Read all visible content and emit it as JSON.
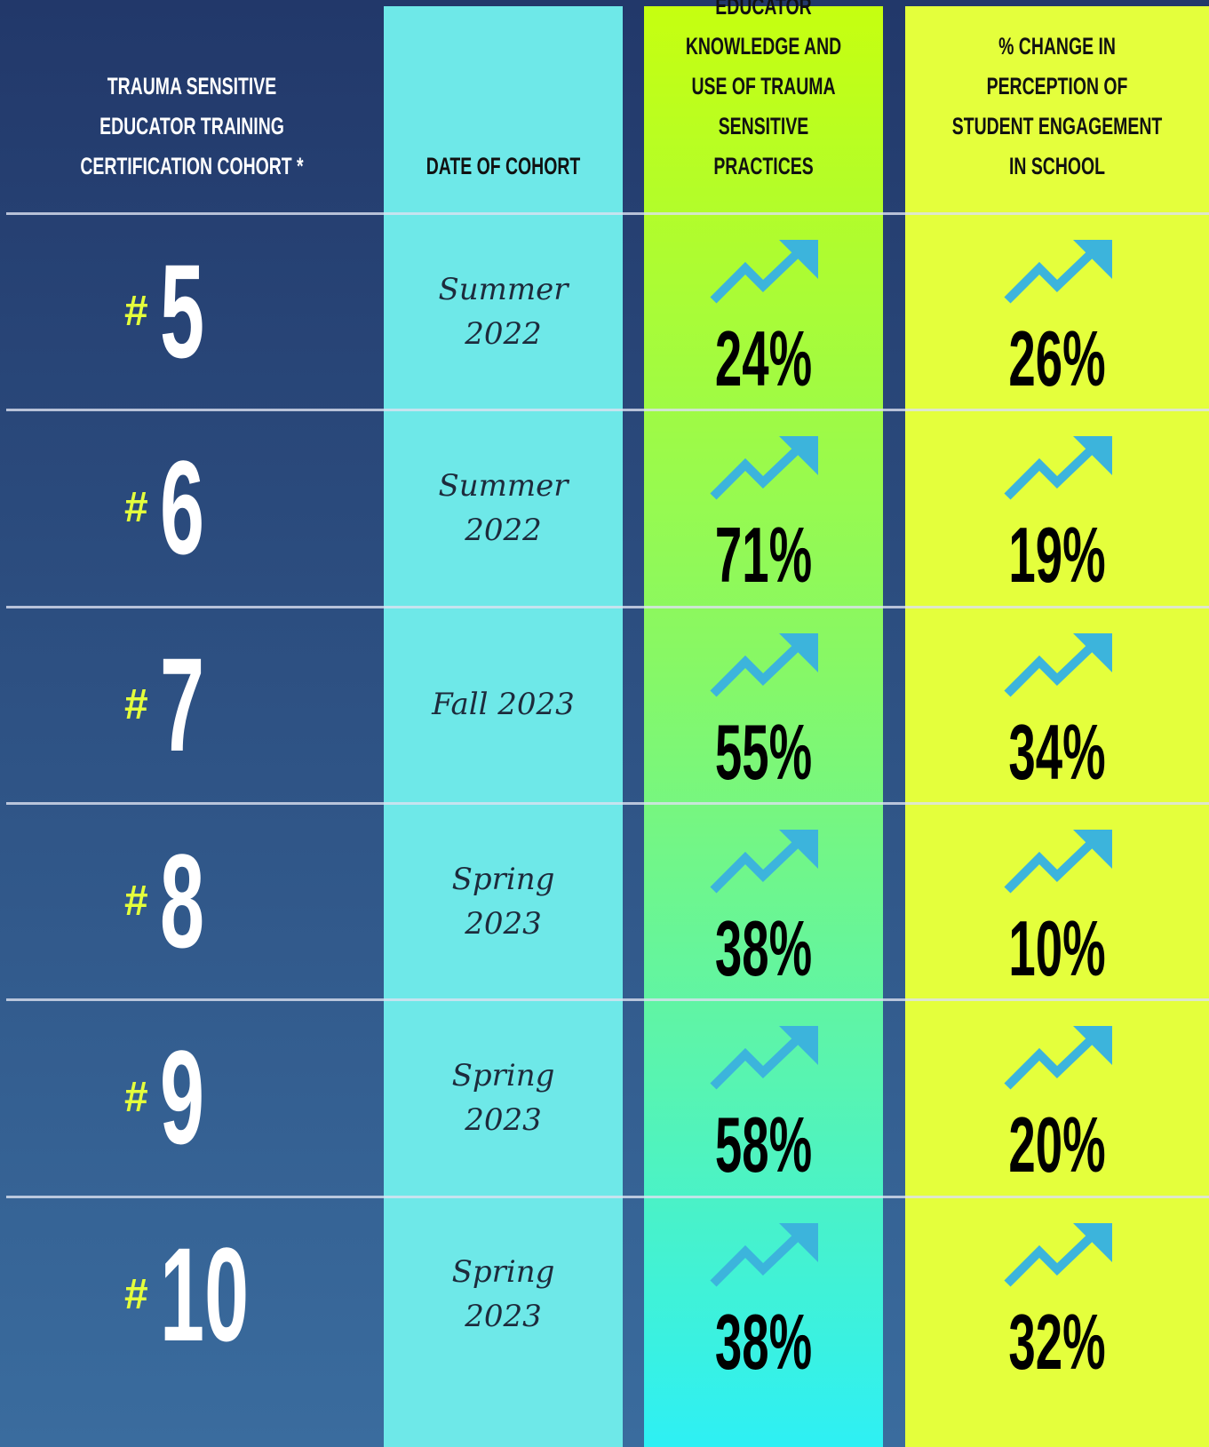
{
  "header": {
    "cohort": "TRAUMA SENSITIVE EDUCATOR TRAINING CERTIFICATION COHORT *",
    "date": "DATE OF COHORT",
    "knowledge": "% CHANGE IN EDUCATOR KNOWLEDGE AND USE OF TRAUMA SENSITIVE PRACTICES",
    "engagement": "% CHANGE IN PERCEPTION OF STUDENT ENGAGEMENT IN SCHOOL"
  },
  "table": {
    "rows": [
      {
        "symbol": "#",
        "number": "5",
        "date": "Summer 2022",
        "knowledge": "24%",
        "engagement": "26%"
      },
      {
        "symbol": "#",
        "number": "6",
        "date": "Summer 2022",
        "knowledge": "71%",
        "engagement": "19%"
      },
      {
        "symbol": "#",
        "number": "7",
        "date": "Fall 2023",
        "knowledge": "55%",
        "engagement": "34%"
      },
      {
        "symbol": "#",
        "number": "8",
        "date": "Spring 2023",
        "knowledge": "38%",
        "engagement": "10%"
      },
      {
        "symbol": "#",
        "number": "9",
        "date": "Spring 2023",
        "knowledge": "58%",
        "engagement": "20%"
      },
      {
        "symbol": "#",
        "number": "10",
        "date": "Spring 2023",
        "knowledge": "38%",
        "engagement": "32%"
      }
    ]
  }
}
